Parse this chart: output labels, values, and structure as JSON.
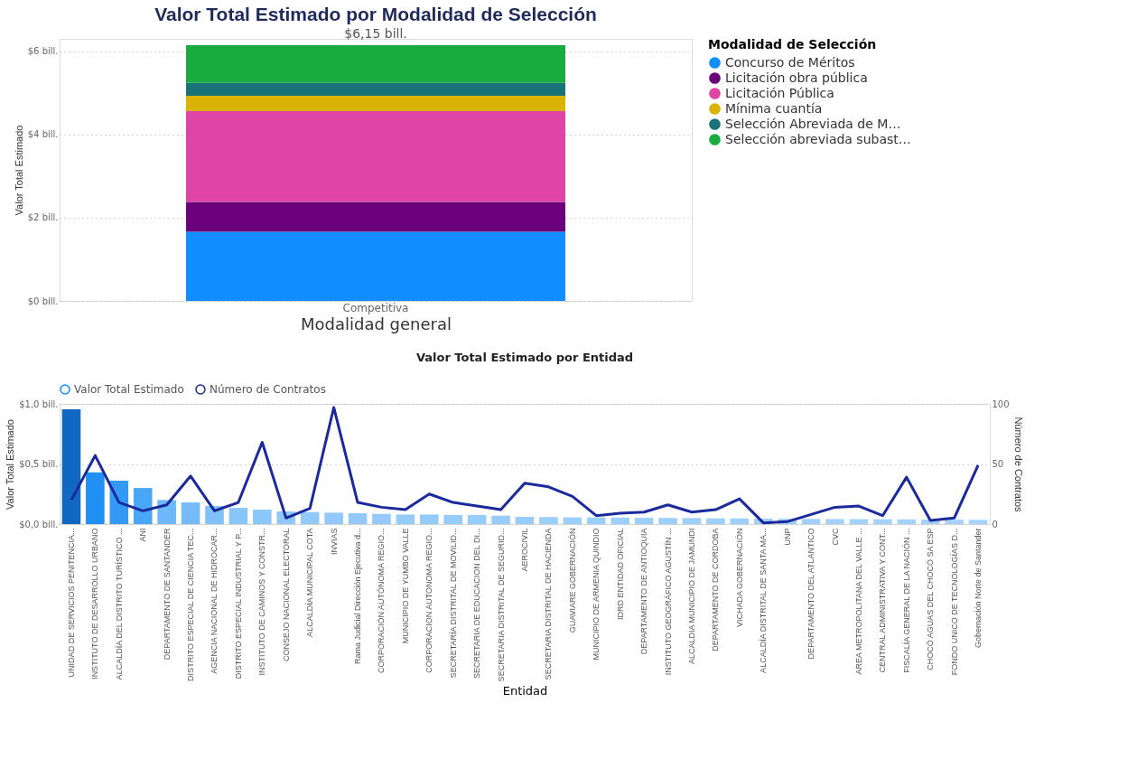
{
  "chart_data": [
    {
      "type": "bar",
      "title": "Valor Total Estimado por Modalidad de Selección",
      "xlabel": "Modalidad general",
      "ylabel": "Valor Total Estimado",
      "legend_title": "Modalidad de Selección",
      "stacked": true,
      "categories": [
        "Competitiva"
      ],
      "series": [
        {
          "name": "Concurso de Méritos",
          "color": "#118dff",
          "values": [
            1.66
          ]
        },
        {
          "name": "Licitación obra pública",
          "color": "#6b007b",
          "values": [
            0.72
          ]
        },
        {
          "name": "Licitación Pública",
          "color": "#e044a7",
          "values": [
            2.18
          ]
        },
        {
          "name": "Mínima cuantía",
          "color": "#d9b300",
          "values": [
            0.37
          ]
        },
        {
          "name": "Selección Abreviada de M…",
          "color": "#197278",
          "values": [
            0.31
          ]
        },
        {
          "name": "Selección abreviada subast…",
          "color": "#1aab40",
          "values": [
            0.91
          ]
        }
      ],
      "totals": [
        "$6,15 bill."
      ],
      "ylim": [
        0,
        6.3
      ],
      "yticks": [
        {
          "value": 0,
          "label": "$0 bill."
        },
        {
          "value": 2,
          "label": "$2 bill."
        },
        {
          "value": 4,
          "label": "$4 bill."
        },
        {
          "value": 6,
          "label": "$6 bill."
        }
      ],
      "grid": "y",
      "legend": "right"
    },
    {
      "type": "bar",
      "title": "Valor Total Estimado por Entidad",
      "xlabel": "Entidad",
      "ylabel": "Valor Total Estimado",
      "y2label": "Número de Contratos",
      "categories": [
        "UNIDAD DE SERVICIOS PENITENCIA...",
        "INSTITUTO DE DESARROLLO URBANO",
        "ALCALDÍA DEL DISTRITO TURÍSTICO ...",
        "ANI",
        "DEPARTAMENTO DE SANTANDER",
        "DISTRITO ESPECIAL DE CIENCIA TEC...",
        "AGENCIA NACIONAL DE HIDROCAR...",
        "DISTRITO ESPECIAL INDUSTRIAL Y P...",
        "INSTITUTO DE CAMINOS Y CONSTR...",
        "CONSEJO NACIONAL ELECTORAL",
        "ALCALDÍA MUNICIPAL COTA",
        "INVIAS",
        "Rama Judicial Dirección Ejecutiva d...",
        "CORPORACIÓN AUTÓNOMA REGIO...",
        "MUNICIPIO DE YUMBO VALLE",
        "CORPORACION AUTONOMA REGIO...",
        "SECRETARÍA DISTRITAL DE MOVILID...",
        "SECRETARIA DE EDUCACION DEL DI...",
        "SECRETARIA DISTRITAL DE SEGURID...",
        "AEROCIVIL",
        "SECRETARIA DISTRITAL DE HACIENDA",
        "GUAVIARE GOBERNACIÓN",
        "MUNICIPIO DE ARMENIA QUINDIO",
        "IDRD ENTIDAD OFICIAL",
        "DEPARTAMENTO DE ANTIOQUIA",
        "INSTITUTO GEOGRÁFICO AGUSTÍN ...",
        "ALCALDIA MUNICIPIO DE JAMUNDI",
        "DEPARTAMENTO DE CORDOBA",
        "VICHADA GOBERNACIÓN",
        "ALCALDÍA DISTRITAL DE SANTA MA...",
        "UNP",
        "DEPARTAMENTO DEL ATLANTICO",
        "CVC",
        "AREA METROPOLITANA DEL VALLE ...",
        "CENTRAL ADMINISTRATIVA Y CONT...",
        "FISCALÍA GENERAL DE LA NACIÓN ...",
        "CHOCÓ AGUAS DEL CHOCÓ SA ESP",
        "FONDO UNICO DE TECNOLOGÍAS D...",
        "Gobernación Norte de Santander"
      ],
      "series": [
        {
          "name": "Valor Total Estimado",
          "type": "bar",
          "color": "#118dff",
          "values": [
            0.955,
            0.43,
            0.36,
            0.3,
            0.2,
            0.18,
            0.15,
            0.135,
            0.12,
            0.105,
            0.1,
            0.095,
            0.09,
            0.085,
            0.08,
            0.08,
            0.075,
            0.075,
            0.07,
            0.06,
            0.058,
            0.056,
            0.055,
            0.054,
            0.052,
            0.051,
            0.05,
            0.048,
            0.047,
            0.045,
            0.044,
            0.043,
            0.042,
            0.041,
            0.04,
            0.039,
            0.038,
            0.037,
            0.035
          ],
          "colors": [
            "#1167c1",
            "#2090f5",
            "#3399f5",
            "#4aa6f7",
            "#6db8f9",
            "#75bbfa",
            "#80c1fa",
            "#88c5fb",
            "#8cc7fb",
            "#8fc8fb",
            "#91c9fb",
            "#91c9fb",
            "#93cafb",
            "#93cafb",
            "#95cbfb",
            "#95cbfb",
            "#96ccfb",
            "#96ccfb",
            "#98cdfb",
            "#98cdfb",
            "#9acefb",
            "#9acefb",
            "#9acefb",
            "#9ccffb",
            "#9ccffb",
            "#9ccffb",
            "#9ecffb",
            "#9ecffb",
            "#9ecffb",
            "#a0d0fb",
            "#a0d0fb",
            "#a0d0fb",
            "#a2d1fb",
            "#a2d1fb",
            "#a2d1fb",
            "#a4d2fb",
            "#a4d2fb",
            "#a4d2fb",
            "#a6d3fb"
          ]
        },
        {
          "name": "Número de Contratos",
          "type": "line",
          "axis": "y2",
          "color": "#1a2a9c",
          "values": [
            20,
            57,
            18,
            11,
            16,
            40,
            11,
            18,
            68,
            5,
            13,
            97,
            18,
            14,
            12,
            25,
            18,
            15,
            12,
            34,
            31,
            23,
            7,
            9,
            10,
            16,
            10,
            12,
            21,
            1,
            2,
            8,
            14,
            15,
            7,
            39,
            3,
            5,
            49
          ]
        }
      ],
      "ylim": [
        0,
        1.0
      ],
      "yticks": [
        {
          "value": 0,
          "label": "$0,0 bill."
        },
        {
          "value": 0.5,
          "label": "$0,5 bill."
        },
        {
          "value": 1.0,
          "label": "$1,0 bill."
        }
      ],
      "y2lim": [
        0,
        100
      ],
      "y2ticks": [
        0,
        50,
        100
      ],
      "grid": "y",
      "legend": "top left"
    }
  ]
}
